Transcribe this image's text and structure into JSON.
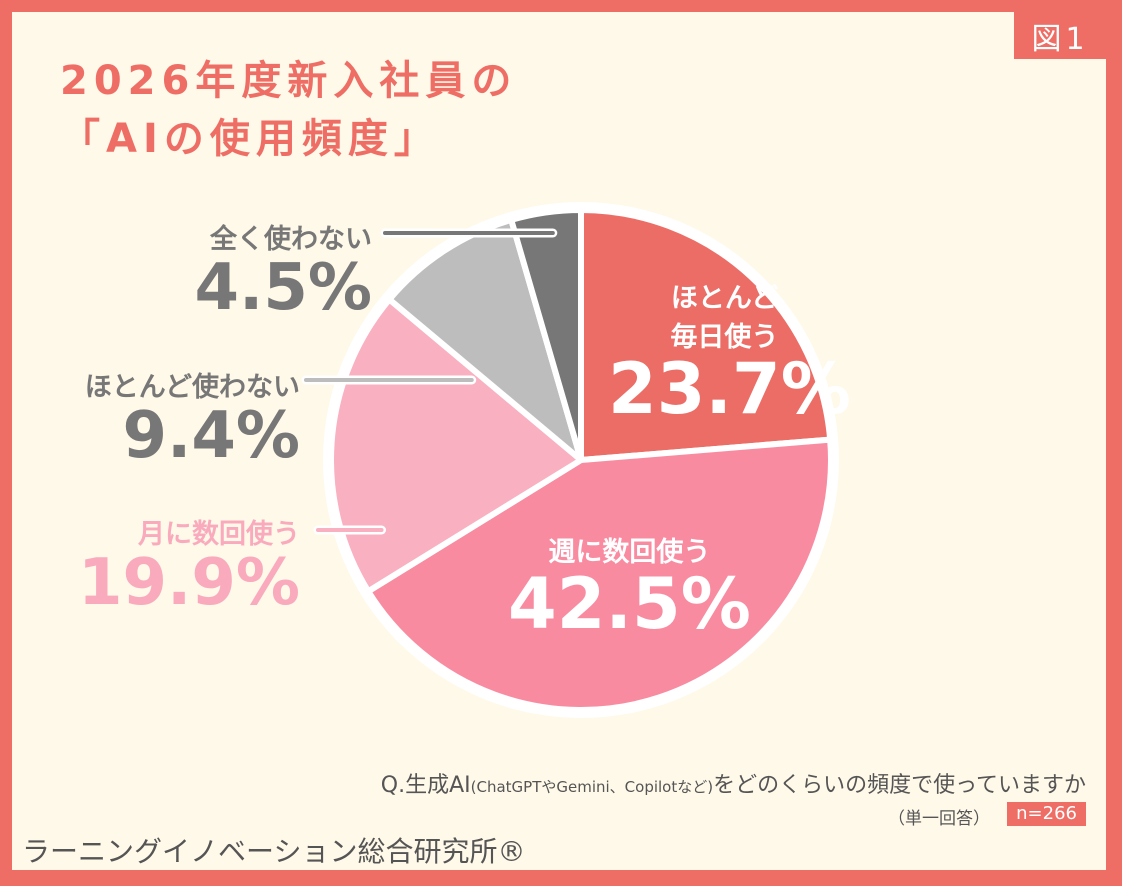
{
  "badge": "図1",
  "title": {
    "line1": "2026年度新入社員の",
    "line2": "「AIの使用頻度」"
  },
  "question": {
    "prefix": "Q.生成AI",
    "paren": "(ChatGPTやGemini、Copilotなど)",
    "suffix": "をどのくらいの頻度で使っていますか",
    "type": "（単一回答）",
    "n": "n=266"
  },
  "organization": "ラーニングイノベーション総合研究所®",
  "chart_data": {
    "type": "pie",
    "start": "top",
    "direction": "clockwise",
    "slices": [
      {
        "label": "ほとんど毎日使う",
        "value": 23.7,
        "display": "23.7%",
        "color": "#ec6d66"
      },
      {
        "label": "週に数回使う",
        "value": 42.5,
        "display": "42.5%",
        "color": "#f98ba1"
      },
      {
        "label": "月に数回使う",
        "value": 19.9,
        "display": "19.9%",
        "color": "#f9b0c0"
      },
      {
        "label": "ほとんど使わない",
        "value": 9.4,
        "display": "9.4%",
        "color": "#bdbdbd"
      },
      {
        "label": "全く使わない",
        "value": 4.5,
        "display": "4.5%",
        "color": "#777777"
      }
    ],
    "label_line1_daily": "ほとんど",
    "label_line2_daily": "毎日使う"
  }
}
